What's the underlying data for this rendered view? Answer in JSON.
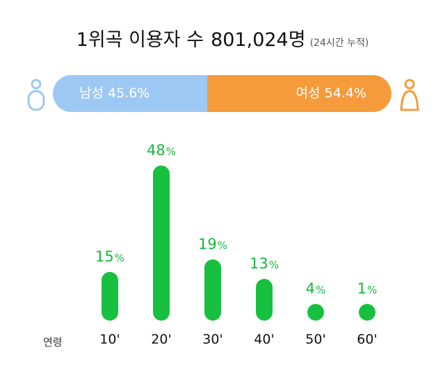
{
  "header": {
    "title": "1위곡 이용자 수",
    "count": "801,024명",
    "note": "(24시간 누적)"
  },
  "gender": {
    "male_label": "남성 45.6%",
    "female_label": "여성 54.4%",
    "male_pct": 45.6,
    "female_pct": 54.4,
    "male_color": "#9ec8f4",
    "female_color": "#f59b3c",
    "male_icon": "male-person-icon",
    "female_icon": "female-person-icon"
  },
  "chart_data": {
    "type": "bar",
    "xlabel": "연령",
    "categories": [
      "10'",
      "20'",
      "30'",
      "40'",
      "50'",
      "60'"
    ],
    "values": [
      15,
      48,
      19,
      13,
      4,
      1
    ],
    "value_suffix": "%",
    "bar_color": "#17c13f",
    "label_color": "#17b83c"
  }
}
